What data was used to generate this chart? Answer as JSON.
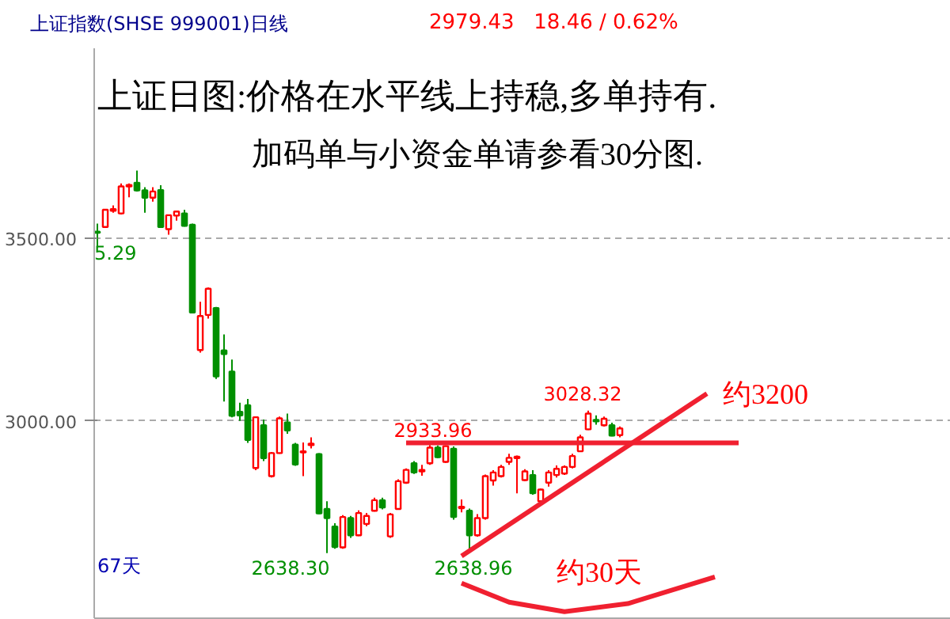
{
  "chart_data": {
    "type": "candlestick",
    "title": "上证指数(SHSE 999001)日线",
    "subtitle": "2979.43   18.46 / 0.62%",
    "categories": [
      null,
      null,
      null,
      null,
      null,
      null,
      null,
      null,
      null,
      null,
      null,
      null,
      null,
      null,
      null,
      null,
      null,
      null,
      null,
      null,
      null,
      null,
      null,
      null,
      null,
      null,
      null,
      null,
      null,
      null,
      null,
      null,
      null,
      null,
      null,
      null,
      null,
      null,
      null,
      null,
      null,
      null,
      null,
      null,
      null,
      null,
      null,
      null,
      null,
      null,
      null,
      null,
      null,
      null,
      null,
      null,
      null,
      null,
      null,
      null,
      null,
      null,
      null,
      null,
      null,
      null,
      null,
      null,
      null,
      null,
      null,
      null,
      null,
      null,
      null,
      null,
      null,
      null,
      null,
      null,
      null,
      null,
      null,
      null,
      null,
      null,
      null,
      null,
      null,
      null,
      null,
      null,
      null,
      null,
      null,
      null,
      null,
      null,
      null,
      null,
      null,
      null,
      null,
      null,
      null,
      null,
      null,
      null
    ],
    "ohlc": [
      [
        3518,
        3540,
        3475.29,
        3515
      ],
      [
        3531,
        3580,
        3531,
        3578
      ],
      [
        3575,
        3590,
        3570,
        3580
      ],
      [
        3568,
        3650,
        3565,
        3642
      ],
      [
        3642,
        3650,
        3612,
        3646
      ],
      [
        3652,
        3685,
        3628,
        3631
      ],
      [
        3631,
        3640,
        3570,
        3611
      ],
      [
        3611,
        3640,
        3600,
        3628
      ],
      [
        3632,
        3645,
        3528,
        3531
      ],
      [
        3525,
        3565,
        3510,
        3563
      ],
      [
        3562,
        3575,
        3548,
        3573
      ],
      [
        3568,
        3578,
        3532,
        3534
      ],
      [
        3537,
        3540,
        3297,
        3297
      ],
      [
        3194,
        3326,
        3187,
        3287
      ],
      [
        3290,
        3365,
        3280,
        3362
      ],
      [
        3309,
        3312,
        3115,
        3122
      ],
      [
        3193,
        3237,
        3053,
        3183
      ],
      [
        3135,
        3168,
        3010,
        3014
      ],
      [
        3025,
        3050,
        3000,
        3015
      ],
      [
        3043,
        3060,
        2940,
        2948
      ],
      [
        2871,
        3012,
        2865,
        3010
      ],
      [
        2988,
        3004,
        2890,
        2898
      ],
      [
        2849,
        2915,
        2845,
        2912
      ],
      [
        2912,
        3012,
        2910,
        3007
      ],
      [
        2996,
        3020,
        2965,
        2974
      ],
      [
        2935,
        2940,
        2877,
        2881
      ],
      [
        2914,
        2941,
        2849,
        2917
      ],
      [
        2934,
        2955,
        2925,
        2938
      ],
      [
        2909,
        2912,
        2745,
        2747
      ],
      [
        2759,
        2780,
        2638.3,
        2734
      ],
      [
        2711,
        2720,
        2650,
        2655
      ],
      [
        2654,
        2742,
        2650,
        2737
      ],
      [
        2734,
        2740,
        2680,
        2687
      ],
      [
        2687,
        2755,
        2685,
        2748
      ],
      [
        2718,
        2748,
        2712,
        2740
      ],
      [
        2754,
        2790,
        2752,
        2783
      ],
      [
        2783,
        2790,
        2758,
        2763
      ],
      [
        2684,
        2748,
        2680,
        2744
      ],
      [
        2759,
        2840,
        2757,
        2835
      ],
      [
        2831,
        2870,
        2828,
        2866
      ],
      [
        2884,
        2890,
        2855,
        2859
      ],
      [
        2862,
        2880,
        2850,
        2866
      ],
      [
        2884,
        2933.96,
        2880,
        2927
      ],
      [
        2927,
        2933,
        2898,
        2901
      ],
      [
        2888,
        2933,
        2885,
        2931
      ],
      [
        2924,
        2930,
        2730,
        2737
      ],
      [
        2761,
        2785,
        2750,
        2765
      ],
      [
        2754,
        2760,
        2638.96,
        2687
      ],
      [
        2687,
        2745,
        2683,
        2734
      ],
      [
        2734,
        2853,
        2730,
        2849
      ],
      [
        2837,
        2865,
        2823,
        2859
      ],
      [
        2849,
        2880,
        2845,
        2874
      ],
      [
        2888,
        2910,
        2880,
        2899
      ],
      [
        2898,
        2905,
        2802,
        2902
      ],
      [
        2838,
        2868,
        2835,
        2862
      ],
      [
        2852,
        2865,
        2798,
        2802
      ],
      [
        2780,
        2815,
        2776,
        2812
      ],
      [
        2831,
        2865,
        2820,
        2859
      ],
      [
        2852,
        2878,
        2845,
        2869
      ],
      [
        2856,
        2878,
        2852,
        2874
      ],
      [
        2874,
        2910,
        2870,
        2904
      ],
      [
        2917,
        2962,
        2915,
        2955
      ],
      [
        2977,
        3028.32,
        2975,
        3020
      ],
      [
        3003,
        3015,
        2990,
        2999
      ],
      [
        2988,
        3012,
        2985,
        3006
      ],
      [
        2988,
        2995,
        2958,
        2960
      ],
      [
        2961,
        2985,
        2955,
        2979.43
      ],
      null,
      null,
      null,
      null,
      null,
      null,
      null,
      null,
      null,
      null,
      null,
      null,
      null,
      null,
      null,
      null,
      null,
      null,
      null,
      null,
      null,
      null,
      null,
      null,
      null,
      null,
      null,
      null,
      null,
      null,
      null,
      null,
      null,
      null,
      null,
      null,
      null,
      null,
      null,
      null,
      null
    ],
    "colors": [
      "#008f00",
      "#ff0000",
      "#ff0000",
      "#ff0000",
      "#ff0000",
      "#008f00",
      "#008f00",
      "#ff0000",
      "#008f00",
      "#ff0000",
      "#ff0000",
      "#008f00",
      "#008f00",
      "#ff0000",
      "#ff0000",
      "#008f00",
      "#008f00",
      "#008f00",
      "#008f00",
      "#008f00",
      "#ff0000",
      "#008f00",
      "#ff0000",
      "#ff0000",
      "#008f00",
      "#008f00",
      "#ff0000",
      "#ff0000",
      "#008f00",
      "#008f00",
      "#008f00",
      "#ff0000",
      "#008f00",
      "#ff0000",
      "#ff0000",
      "#ff0000",
      "#008f00",
      "#ff0000",
      "#ff0000",
      "#ff0000",
      "#008f00",
      "#ff0000",
      "#ff0000",
      "#008f00",
      "#ff0000",
      "#008f00",
      "#ff0000",
      "#008f00",
      "#ff0000",
      "#ff0000",
      "#ff0000",
      "#ff0000",
      "#ff0000",
      "#ff0000",
      "#ff0000",
      "#008f00",
      "#ff0000",
      "#ff0000",
      "#ff0000",
      "#ff0000",
      "#ff0000",
      "#ff0000",
      "#ff0000",
      "#008f00",
      "#ff0000",
      "#008f00",
      "#ff0000",
      null,
      null,
      null,
      null,
      null,
      null,
      null,
      null,
      null,
      null,
      null,
      null,
      null,
      null,
      null,
      null,
      null,
      null,
      null,
      null,
      null,
      null,
      null,
      null,
      null,
      null,
      null,
      null,
      null,
      null,
      null,
      null,
      null,
      null,
      null,
      null,
      null,
      null,
      null,
      null,
      null
    ],
    "series": [
      {
        "type": "line",
        "color": "#f02030",
        "values": [
          null,
          null,
          null,
          null,
          null,
          null,
          null,
          null,
          null,
          null,
          null,
          null,
          null,
          null,
          null,
          null,
          null,
          null,
          null,
          null,
          null,
          null,
          null,
          null,
          null,
          null,
          null,
          null,
          null,
          null,
          null,
          null,
          null,
          null,
          null,
          null,
          null,
          null,
          null,
          2940,
          null,
          null,
          null,
          null,
          null,
          null,
          null,
          null,
          null,
          null,
          null,
          null,
          null,
          null,
          null,
          null,
          null,
          null,
          null,
          null,
          null,
          null,
          null,
          null,
          null,
          null,
          null,
          null,
          null,
          null,
          null,
          null,
          null,
          null,
          null,
          null,
          null,
          null,
          null,
          null,
          null,
          2940,
          null,
          null,
          null,
          null,
          null,
          null,
          null,
          null,
          null,
          null,
          null,
          null,
          null,
          null,
          null,
          null,
          null,
          null,
          null,
          null,
          null,
          null,
          null,
          null,
          null,
          null
        ]
      },
      {
        "type": "line",
        "color": "#f02030",
        "values": [
          null,
          null,
          null,
          null,
          null,
          null,
          null,
          null,
          null,
          null,
          null,
          null,
          null,
          null,
          null,
          null,
          null,
          null,
          null,
          null,
          null,
          null,
          null,
          null,
          null,
          null,
          null,
          null,
          null,
          null,
          null,
          null,
          null,
          null,
          null,
          null,
          null,
          null,
          null,
          null,
          null,
          null,
          null,
          null,
          null,
          null,
          2630,
          null,
          null,
          null,
          null,
          null,
          null,
          null,
          null,
          null,
          null,
          null,
          null,
          null,
          null,
          null,
          null,
          null,
          null,
          null,
          null,
          null,
          null,
          null,
          null,
          null,
          null,
          null,
          null,
          null,
          null,
          3075,
          null,
          null,
          null,
          null,
          null,
          null,
          null,
          null,
          null,
          null,
          null,
          null,
          null,
          null,
          null,
          null,
          null,
          null,
          null,
          null,
          null,
          null,
          null,
          null,
          null,
          null,
          null,
          null,
          null,
          null
        ]
      },
      {
        "type": "line",
        "color": "#f02030",
        "values": [
          null,
          null,
          null,
          null,
          null,
          null,
          null,
          null,
          null,
          null,
          null,
          null,
          null,
          null,
          null,
          null,
          null,
          null,
          null,
          null,
          null,
          null,
          null,
          null,
          null,
          null,
          null,
          null,
          null,
          null,
          null,
          null,
          null,
          null,
          null,
          null,
          null,
          null,
          null,
          null,
          null,
          null,
          null,
          null,
          null,
          null,
          2556,
          null,
          null,
          null,
          null,
          null,
          2504,
          null,
          null,
          null,
          null,
          null,
          null,
          2478,
          null,
          null,
          null,
          null,
          null,
          null,
          null,
          2500,
          null,
          null,
          null,
          null,
          null,
          null,
          null,
          null,
          null,
          null,
          2573,
          null,
          null,
          null,
          null,
          null,
          null,
          null,
          null,
          null,
          null,
          null,
          null,
          null,
          null,
          null,
          null,
          null,
          null,
          null,
          null,
          null,
          null,
          null,
          null,
          null,
          null,
          null,
          null,
          null
        ]
      }
    ],
    "ylim": [
      2460,
      4020
    ],
    "yticks": [
      {
        "value": 3000,
        "label": "3000.00"
      },
      {
        "value": 3500,
        "label": "3500.00"
      }
    ],
    "grid": "y",
    "tick_labels": "y",
    "annotations": [
      "上证日图:价格在水平线上持稳,多单持有.",
      "加码单与小资金单请参看30分图.",
      "5.29",
      "2933.96",
      "3028.32",
      "2638.30",
      "2638.96",
      "67天",
      "约3200",
      "约30天"
    ]
  }
}
